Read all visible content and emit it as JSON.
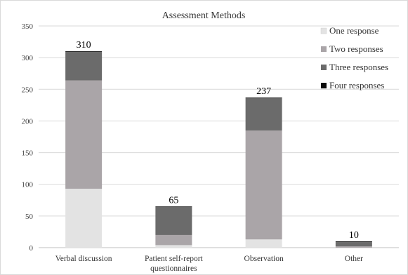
{
  "chart_data": {
    "type": "bar",
    "stacked": true,
    "title": "Assessment Methods",
    "xlabel": "",
    "ylabel": "",
    "ylim": [
      0,
      350
    ],
    "yticks": [
      0,
      50,
      100,
      150,
      200,
      250,
      300,
      350
    ],
    "grid": true,
    "legend_position": "top-right",
    "categories": [
      [
        "Verbal discussion"
      ],
      [
        "Patient self-report",
        "questionnaires"
      ],
      [
        "Observation"
      ],
      [
        "Other"
      ]
    ],
    "series": [
      {
        "name": "One response",
        "color": "#e3e3e3",
        "values": [
          93,
          4,
          13,
          0
        ]
      },
      {
        "name": "Two responses",
        "color": "#aaa5a8",
        "values": [
          171,
          16,
          172,
          2
        ]
      },
      {
        "name": "Three responses",
        "color": "#6b6b6b",
        "values": [
          45,
          44,
          51,
          7
        ]
      },
      {
        "name": "Four responses",
        "color": "#0a0a0a",
        "values": [
          1,
          1,
          1,
          1
        ]
      }
    ],
    "totals": [
      "310",
      "65",
      "237",
      "10"
    ]
  }
}
